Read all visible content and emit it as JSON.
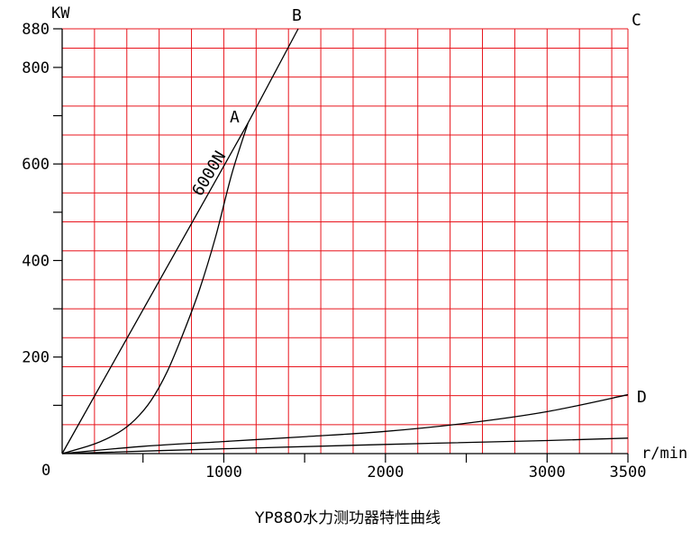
{
  "chart_data": {
    "type": "line",
    "title": "YP880水力测功器特性曲线",
    "xlabel": "r/min",
    "ylabel": "KW",
    "origin_label": "0",
    "xlim": [
      0,
      3500
    ],
    "ylim": [
      0,
      880
    ],
    "x_tick_labels": [
      "1000",
      "2000",
      "3000",
      "3500"
    ],
    "y_tick_labels": [
      "200",
      "400",
      "600",
      "800",
      "880"
    ],
    "grid": true,
    "grid_color": "#e8141c",
    "line_color": "#000000",
    "point_labels": [
      "A",
      "B",
      "C",
      "D"
    ],
    "annotation": "6000N",
    "series": [
      {
        "id": "line-6000n",
        "x": [
          0,
          1150,
          1460
        ],
        "y": [
          0,
          685,
          880
        ]
      },
      {
        "id": "curve-OA",
        "x": [
          0,
          200,
          350,
          450,
          550,
          650,
          750,
          850,
          950,
          1050,
          1150
        ],
        "y": [
          0,
          20,
          44,
          70,
          110,
          170,
          250,
          340,
          450,
          580,
          685
        ]
      },
      {
        "id": "curve-OD-upper",
        "x": [
          0,
          500,
          1000,
          1500,
          2000,
          2500,
          3000,
          3500
        ],
        "y": [
          0,
          15,
          25,
          35,
          46,
          63,
          87,
          122
        ]
      },
      {
        "id": "curve-OD-lower",
        "x": [
          0,
          1000,
          2000,
          3000,
          3500
        ],
        "y": [
          0,
          10,
          19,
          27,
          32
        ]
      }
    ]
  }
}
